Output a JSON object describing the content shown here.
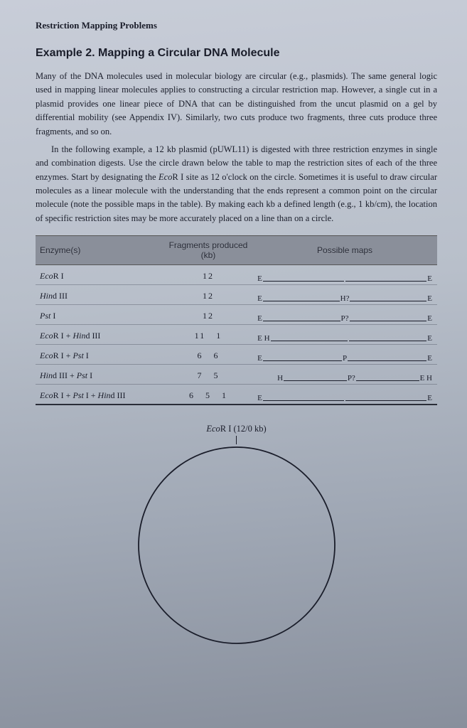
{
  "header": "Restriction Mapping Problems",
  "title": "Example 2. Mapping a Circular DNA Molecule",
  "para1": "Many of the DNA molecules used in molecular biology are circular (e.g., plasmids). The same general logic used in mapping linear molecules applies to constructing a circular restriction map. However, a single cut in a plasmid provides one linear piece of DNA that can be distinguished from the uncut plasmid on a gel by differential mobility (see Appendix IV). Similarly, two cuts produce two fragments, three cuts produce three fragments, and so on.",
  "para2a": "In the following example, a 12 kb plasmid (pUWL11) is digested with three restriction enzymes in single and combination digests. Use the circle drawn below the table to map the restriction sites of each of the three enzymes. Start by designating the ",
  "para2b": "Eco",
  "para2c": "R I site as 12 o'clock on the circle. Sometimes it is useful to draw circular molecules as a linear molecule with the understanding that the ends represent a common point on the circular molecule (note the possible maps in the table). By making each kb a defined length (e.g., 1 kb/cm), the location of specific restriction sites may be more accurately placed on a line than on a circle.",
  "thead": {
    "c1": "Enzyme(s)",
    "c2": "Fragments produced (kb)",
    "c3": "Possible maps"
  },
  "rows": [
    {
      "enz_i": "Eco",
      "enz_r": "R I",
      "frag": "12",
      "map": {
        "marks": [
          "E",
          "",
          "E"
        ],
        "mids": [
          ""
        ]
      }
    },
    {
      "enz_i": "Hin",
      "enz_r": "d III",
      "frag": "12",
      "map": {
        "marks": [
          "E",
          "H?",
          "E"
        ],
        "mids": [
          "",
          ""
        ]
      }
    },
    {
      "enz_i": "Pst",
      "enz_r": " I",
      "frag": "12",
      "map": {
        "marks": [
          "E",
          "P?",
          "E"
        ],
        "mids": [
          "",
          ""
        ]
      }
    },
    {
      "enz_i": "Eco",
      "enz_r": "R I + ",
      "enz_i2": "Hin",
      "enz_r2": "d III",
      "frag": "11   1",
      "map": {
        "marks": [
          "E H",
          "",
          "E"
        ],
        "mids": [
          ""
        ]
      }
    },
    {
      "enz_i": "Eco",
      "enz_r": "R I + ",
      "enz_i2": "Pst",
      "enz_r2": " I",
      "frag": "6   6",
      "map": {
        "marks": [
          "E",
          "P",
          "E"
        ],
        "mids": [
          "",
          ""
        ]
      }
    },
    {
      "enz_i": "Hin",
      "enz_r": "d III + ",
      "enz_i2": "Pst",
      "enz_r2": " I",
      "frag": "7   5",
      "map": {
        "marks": [
          "H",
          "P?",
          "E H"
        ],
        "mids": [
          "",
          ""
        ],
        "shift": true
      }
    },
    {
      "enz_i": "Eco",
      "enz_r": "R I + ",
      "enz_i2": "Pst",
      "enz_r2": " I + ",
      "enz_i3": "Hin",
      "enz_r3": "d III",
      "frag": "6   5   1",
      "map": {
        "marks": [
          "E",
          "",
          "E"
        ],
        "mids": [
          ""
        ]
      }
    }
  ],
  "circle": {
    "label_enz_i": "Eco",
    "label_rest": "R I (12/0 kb)",
    "radius": 138,
    "stroke": "#1a1d2a",
    "stroke_width": 1.8
  },
  "colors": {
    "thead_bg": "#8a8f9a",
    "line": "#1a1d2a"
  }
}
